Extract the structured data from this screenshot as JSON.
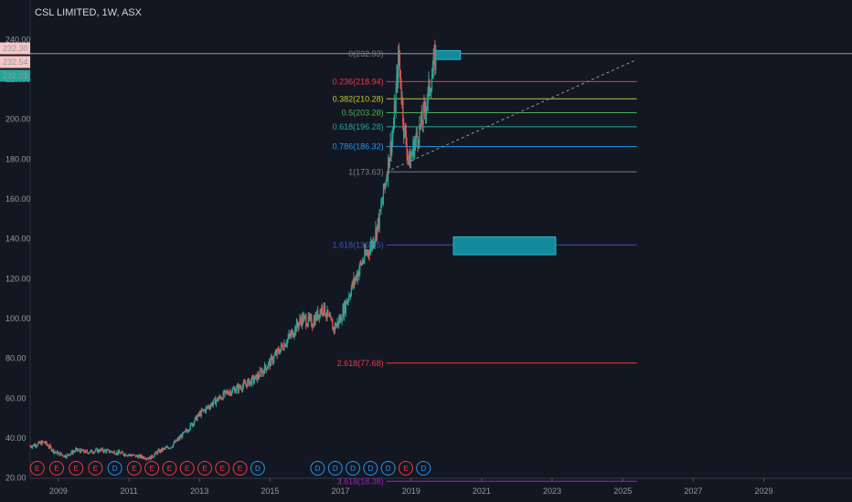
{
  "header": {
    "title": "CSL LIMITED, 1W, ASX"
  },
  "price_tags": [
    {
      "value": "232.30",
      "bg": "#f8c6c6",
      "fg": "#131722"
    },
    {
      "value": "232.54",
      "bg": "#f8c6c6",
      "fg": "#131722"
    },
    {
      "value": "232.03",
      "bg": "#26a69a",
      "fg": "#ffffff"
    }
  ],
  "chart_data": {
    "type": "line",
    "title": "CSL LIMITED, 1W, ASX",
    "xlabel": "",
    "ylabel": "",
    "xlim": [
      2008.2,
      2031.5
    ],
    "ylim": [
      13,
      242
    ],
    "grid": false,
    "y_ticks": [
      "20.00",
      "40.00",
      "60.00",
      "80.00",
      "100.00",
      "120.00",
      "140.00",
      "160.00",
      "180.00",
      "200.00",
      "220.00",
      "240.00"
    ],
    "x_ticks": [
      "2009",
      "2011",
      "2013",
      "2015",
      "2017",
      "2019",
      "2021",
      "2023",
      "2025",
      "2027",
      "2029"
    ],
    "price_series": [
      {
        "x": 2008.2,
        "y": 36
      },
      {
        "x": 2008.6,
        "y": 38
      },
      {
        "x": 2008.9,
        "y": 33
      },
      {
        "x": 2009.2,
        "y": 31
      },
      {
        "x": 2009.5,
        "y": 34
      },
      {
        "x": 2009.8,
        "y": 33
      },
      {
        "x": 2010.2,
        "y": 34
      },
      {
        "x": 2010.6,
        "y": 33
      },
      {
        "x": 2010.9,
        "y": 32
      },
      {
        "x": 2011.2,
        "y": 31
      },
      {
        "x": 2011.6,
        "y": 30
      },
      {
        "x": 2011.8,
        "y": 33
      },
      {
        "x": 2012.2,
        "y": 36
      },
      {
        "x": 2012.6,
        "y": 43
      },
      {
        "x": 2013.0,
        "y": 52
      },
      {
        "x": 2013.4,
        "y": 58
      },
      {
        "x": 2013.8,
        "y": 63
      },
      {
        "x": 2014.2,
        "y": 66
      },
      {
        "x": 2014.6,
        "y": 70
      },
      {
        "x": 2015.0,
        "y": 78
      },
      {
        "x": 2015.3,
        "y": 85
      },
      {
        "x": 2015.6,
        "y": 92
      },
      {
        "x": 2015.9,
        "y": 100
      },
      {
        "x": 2016.2,
        "y": 98
      },
      {
        "x": 2016.5,
        "y": 106
      },
      {
        "x": 2016.8,
        "y": 95
      },
      {
        "x": 2017.0,
        "y": 100
      },
      {
        "x": 2017.3,
        "y": 115
      },
      {
        "x": 2017.6,
        "y": 128
      },
      {
        "x": 2017.9,
        "y": 138
      },
      {
        "x": 2018.1,
        "y": 150
      },
      {
        "x": 2018.3,
        "y": 172
      },
      {
        "x": 2018.5,
        "y": 196
      },
      {
        "x": 2018.65,
        "y": 232
      },
      {
        "x": 2018.8,
        "y": 195
      },
      {
        "x": 2018.95,
        "y": 178
      },
      {
        "x": 2019.1,
        "y": 188
      },
      {
        "x": 2019.3,
        "y": 198
      },
      {
        "x": 2019.5,
        "y": 214
      },
      {
        "x": 2019.7,
        "y": 232
      }
    ],
    "fib_levels": [
      {
        "label": "0(232.93)",
        "value": 232.93,
        "color": "#787b86"
      },
      {
        "label": "0.236(218.94)",
        "value": 218.94,
        "color": "#f23645"
      },
      {
        "label": "0.382(210.28)",
        "value": 210.28,
        "color": "#c0ca33"
      },
      {
        "label": "0.5(203.28)",
        "value": 203.28,
        "color": "#4caf50"
      },
      {
        "label": "0.618(196.28)",
        "value": 196.28,
        "color": "#26a69a"
      },
      {
        "label": "0.786(186.32)",
        "value": 186.32,
        "color": "#2196f3"
      },
      {
        "label": "1(173.63)",
        "value": 173.63,
        "color": "#787b86"
      },
      {
        "label": "1.618(136.95)",
        "value": 136.95,
        "color": "#3f51b5"
      },
      {
        "label": "2.618(77.68)",
        "value": 77.68,
        "color": "#f23645"
      },
      {
        "label": "3.618(18.38)",
        "value": 18.38,
        "color": "#9c27b0"
      }
    ],
    "fib_x_range": [
      2018.3,
      2025.4
    ],
    "trendline": {
      "x1": 2018.3,
      "y1": 173.63,
      "x2": 2025.4,
      "y2": 230
    },
    "zones": [
      {
        "x1": 2019.7,
        "x2": 2020.4,
        "y1": 230,
        "y2": 234.5,
        "color": "#138a9c"
      },
      {
        "x1": 2020.2,
        "x2": 2023.1,
        "y1": 132,
        "y2": 141,
        "color": "#138a9c"
      }
    ],
    "event_badges": [
      {
        "text": "E",
        "x": 2008.4,
        "color": "#f23645"
      },
      {
        "text": "E",
        "x": 2008.95,
        "color": "#f23645"
      },
      {
        "text": "E",
        "x": 2009.5,
        "color": "#f23645"
      },
      {
        "text": "E",
        "x": 2010.05,
        "color": "#f23645"
      },
      {
        "text": "D",
        "x": 2010.6,
        "color": "#2196f3"
      },
      {
        "text": "E",
        "x": 2011.15,
        "color": "#f23645"
      },
      {
        "text": "E",
        "x": 2011.65,
        "color": "#f23645"
      },
      {
        "text": "E",
        "x": 2012.15,
        "color": "#f23645"
      },
      {
        "text": "E",
        "x": 2012.65,
        "color": "#f23645"
      },
      {
        "text": "E",
        "x": 2013.15,
        "color": "#f23645"
      },
      {
        "text": "E",
        "x": 2013.65,
        "color": "#f23645"
      },
      {
        "text": "E",
        "x": 2014.15,
        "color": "#f23645"
      },
      {
        "text": "D",
        "x": 2014.65,
        "color": "#2196f3"
      },
      {
        "text": "D",
        "x": 2016.35,
        "color": "#2196f3"
      },
      {
        "text": "D",
        "x": 2016.85,
        "color": "#2196f3"
      },
      {
        "text": "D",
        "x": 2017.35,
        "color": "#2196f3"
      },
      {
        "text": "D",
        "x": 2017.85,
        "color": "#2196f3"
      },
      {
        "text": "D",
        "x": 2018.35,
        "color": "#2196f3"
      },
      {
        "text": "E",
        "x": 2018.85,
        "color": "#f23645"
      },
      {
        "text": "D",
        "x": 2019.35,
        "color": "#2196f3"
      }
    ]
  }
}
